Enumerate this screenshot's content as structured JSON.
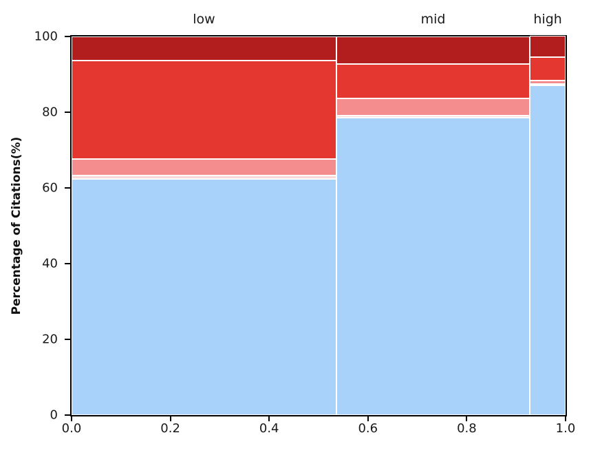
{
  "chart_data": {
    "type": "mosaic_stacked_bar",
    "title": "",
    "xlabel": "",
    "ylabel": "Percentage of Citations(%)",
    "xlim": [
      0,
      1
    ],
    "ylim": [
      0,
      100
    ],
    "x_ticks": [
      "0.0",
      "0.2",
      "0.4",
      "0.6",
      "0.8",
      "1.0"
    ],
    "y_ticks": [
      "0",
      "20",
      "40",
      "60",
      "80",
      "100"
    ],
    "grid": false,
    "legend": "none",
    "segment_order_bottom_to_top": [
      "light_blue",
      "light_pink",
      "salmon",
      "red",
      "dark_red"
    ],
    "segment_colors": {
      "light_blue": "#a8d2f9",
      "light_pink": "#f8d8d8",
      "salmon": "#f48d8d",
      "red": "#e4372f",
      "dark_red": "#b21e1e"
    },
    "columns": [
      {
        "label": "low",
        "x_start": 0.0,
        "x_width": 0.536,
        "segments": [
          {
            "color": "light_blue",
            "value": 62.3
          },
          {
            "color": "light_pink",
            "value": 1.0
          },
          {
            "color": "salmon",
            "value": 4.3
          },
          {
            "color": "red",
            "value": 26.0
          },
          {
            "color": "dark_red",
            "value": 6.4
          }
        ]
      },
      {
        "label": "mid",
        "x_start": 0.536,
        "x_width": 0.392,
        "segments": [
          {
            "color": "light_blue",
            "value": 78.6
          },
          {
            "color": "light_pink",
            "value": 0.5
          },
          {
            "color": "salmon",
            "value": 4.5
          },
          {
            "color": "red",
            "value": 9.1
          },
          {
            "color": "dark_red",
            "value": 7.3
          }
        ]
      },
      {
        "label": "high",
        "x_start": 0.928,
        "x_width": 0.072,
        "segments": [
          {
            "color": "light_blue",
            "value": 87.1
          },
          {
            "color": "light_pink",
            "value": 0.2
          },
          {
            "color": "salmon",
            "value": 0.9
          },
          {
            "color": "red",
            "value": 6.2
          },
          {
            "color": "dark_red",
            "value": 5.6
          }
        ]
      }
    ]
  }
}
